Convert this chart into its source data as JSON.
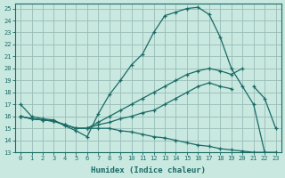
{
  "xlabel": "Humidex (Indice chaleur)",
  "background_color": "#c8e8e0",
  "grid_color": "#9abcb8",
  "line_color": "#1a6b65",
  "xlim": [
    -0.5,
    23.5
  ],
  "ylim": [
    13,
    25.4
  ],
  "xticks": [
    0,
    1,
    2,
    3,
    4,
    5,
    6,
    7,
    8,
    9,
    10,
    11,
    12,
    13,
    14,
    15,
    16,
    17,
    18,
    19,
    20,
    21,
    22,
    23
  ],
  "yticks": [
    13,
    14,
    15,
    16,
    17,
    18,
    19,
    20,
    21,
    22,
    23,
    24,
    25
  ],
  "curve1_x": [
    0,
    1,
    2,
    3,
    4,
    5,
    6,
    7,
    8,
    9,
    10,
    11,
    12,
    13,
    14,
    15,
    16,
    17,
    18,
    19,
    20,
    21,
    22,
    23
  ],
  "curve1_y": [
    17.0,
    16.0,
    15.8,
    15.7,
    15.2,
    14.8,
    14.3,
    16.2,
    17.8,
    19.0,
    20.3,
    21.2,
    23.0,
    24.4,
    24.7,
    25.0,
    25.1,
    24.5,
    22.6,
    20.0,
    18.5,
    17.0,
    13.0,
    null
  ],
  "curve2_x": [
    0,
    1,
    2,
    3,
    4,
    5,
    6,
    7,
    8,
    9,
    10,
    11,
    12,
    13,
    14,
    15,
    16,
    17,
    18,
    19,
    20,
    21,
    22,
    23
  ],
  "curve2_y": [
    16.0,
    15.8,
    15.7,
    15.6,
    15.3,
    15.0,
    15.0,
    15.5,
    16.0,
    16.5,
    17.0,
    17.5,
    18.0,
    18.5,
    19.0,
    19.5,
    19.8,
    20.0,
    19.8,
    19.5,
    20.0,
    null,
    null,
    null
  ],
  "curve3_x": [
    0,
    1,
    2,
    3,
    4,
    5,
    6,
    7,
    8,
    9,
    10,
    11,
    12,
    13,
    14,
    15,
    16,
    17,
    18,
    19,
    20,
    21,
    22,
    23
  ],
  "curve3_y": [
    16.0,
    15.8,
    15.7,
    15.6,
    15.3,
    15.0,
    15.0,
    15.3,
    15.5,
    15.8,
    16.0,
    16.3,
    16.5,
    17.0,
    17.5,
    18.0,
    18.5,
    18.8,
    18.5,
    18.3,
    null,
    18.5,
    17.5,
    15.0
  ],
  "curve4_x": [
    0,
    1,
    2,
    3,
    4,
    5,
    6,
    7,
    8,
    9,
    10,
    11,
    12,
    13,
    14,
    15,
    16,
    17,
    18,
    19,
    20,
    21,
    22,
    23
  ],
  "curve4_y": [
    16.0,
    15.8,
    15.7,
    15.6,
    15.3,
    15.0,
    15.0,
    15.0,
    15.0,
    14.8,
    14.7,
    14.5,
    14.3,
    14.2,
    14.0,
    13.8,
    13.6,
    13.5,
    13.3,
    13.2,
    13.1,
    13.0,
    13.0,
    13.0
  ]
}
